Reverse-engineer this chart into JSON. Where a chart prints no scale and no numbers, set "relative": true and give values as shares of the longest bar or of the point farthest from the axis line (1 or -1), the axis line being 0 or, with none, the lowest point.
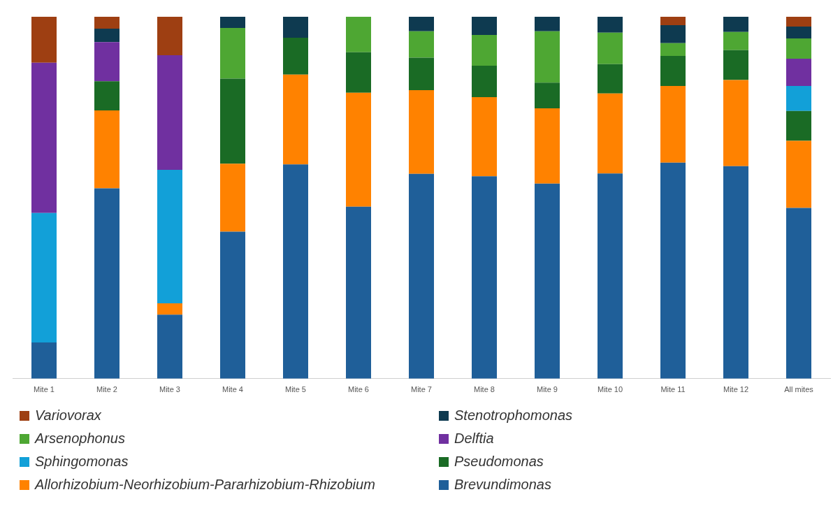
{
  "chart_data": {
    "type": "bar",
    "stacked": true,
    "relative": true,
    "legend": "bottom",
    "categories": [
      "Mite 1",
      "Mite 2",
      "Mite 3",
      "Mite 4",
      "Mite 5",
      "Mite 6",
      "Mite 7",
      "Mite 8",
      "Mite 9",
      "Mite 10",
      "Mite 11",
      "Mite 12",
      "All mites"
    ],
    "series": [
      {
        "name": "Brevundimonas",
        "color": "#1f5f99",
        "values": [
          0.1,
          0.526,
          0.177,
          0.406,
          0.592,
          0.475,
          0.566,
          0.559,
          0.539,
          0.567,
          0.597,
          0.587,
          0.472
        ]
      },
      {
        "name": "Allorhizobium-Neorhizobium-Pararhizobium-Rhizobium",
        "color": "#ff8200",
        "values": [
          null,
          0.215,
          0.031,
          0.188,
          0.248,
          0.315,
          0.231,
          0.219,
          0.208,
          0.221,
          0.212,
          0.238,
          0.185
        ]
      },
      {
        "name": "Pseudomonas",
        "color": "#1a6b25",
        "values": [
          null,
          0.081,
          null,
          0.235,
          0.102,
          0.112,
          0.09,
          0.087,
          0.071,
          0.081,
          0.083,
          0.083,
          0.083
        ]
      },
      {
        "name": "Sphingomonas",
        "color": "#12a0d8",
        "values": [
          0.358,
          null,
          0.369,
          null,
          null,
          null,
          null,
          null,
          null,
          null,
          null,
          null,
          0.069
        ]
      },
      {
        "name": "Delftia",
        "color": "#7030a0",
        "values": [
          0.415,
          0.108,
          0.317,
          null,
          null,
          null,
          null,
          null,
          null,
          null,
          null,
          null,
          0.075
        ]
      },
      {
        "name": "Arsenophonus",
        "color": "#4ea733",
        "values": [
          null,
          null,
          null,
          0.14,
          null,
          0.098,
          0.073,
          0.085,
          0.142,
          0.087,
          0.035,
          0.05,
          0.056
        ]
      },
      {
        "name": "Stenotrophomonas",
        "color": "#0e3a50",
        "values": [
          null,
          0.037,
          null,
          0.031,
          0.058,
          null,
          0.04,
          0.05,
          0.04,
          0.044,
          0.05,
          0.042,
          0.033
        ]
      },
      {
        "name": "Variovorax",
        "color": "#9e3f12",
        "values": [
          0.127,
          0.033,
          0.106,
          null,
          null,
          null,
          null,
          null,
          null,
          null,
          0.023,
          null,
          0.027
        ]
      }
    ]
  }
}
